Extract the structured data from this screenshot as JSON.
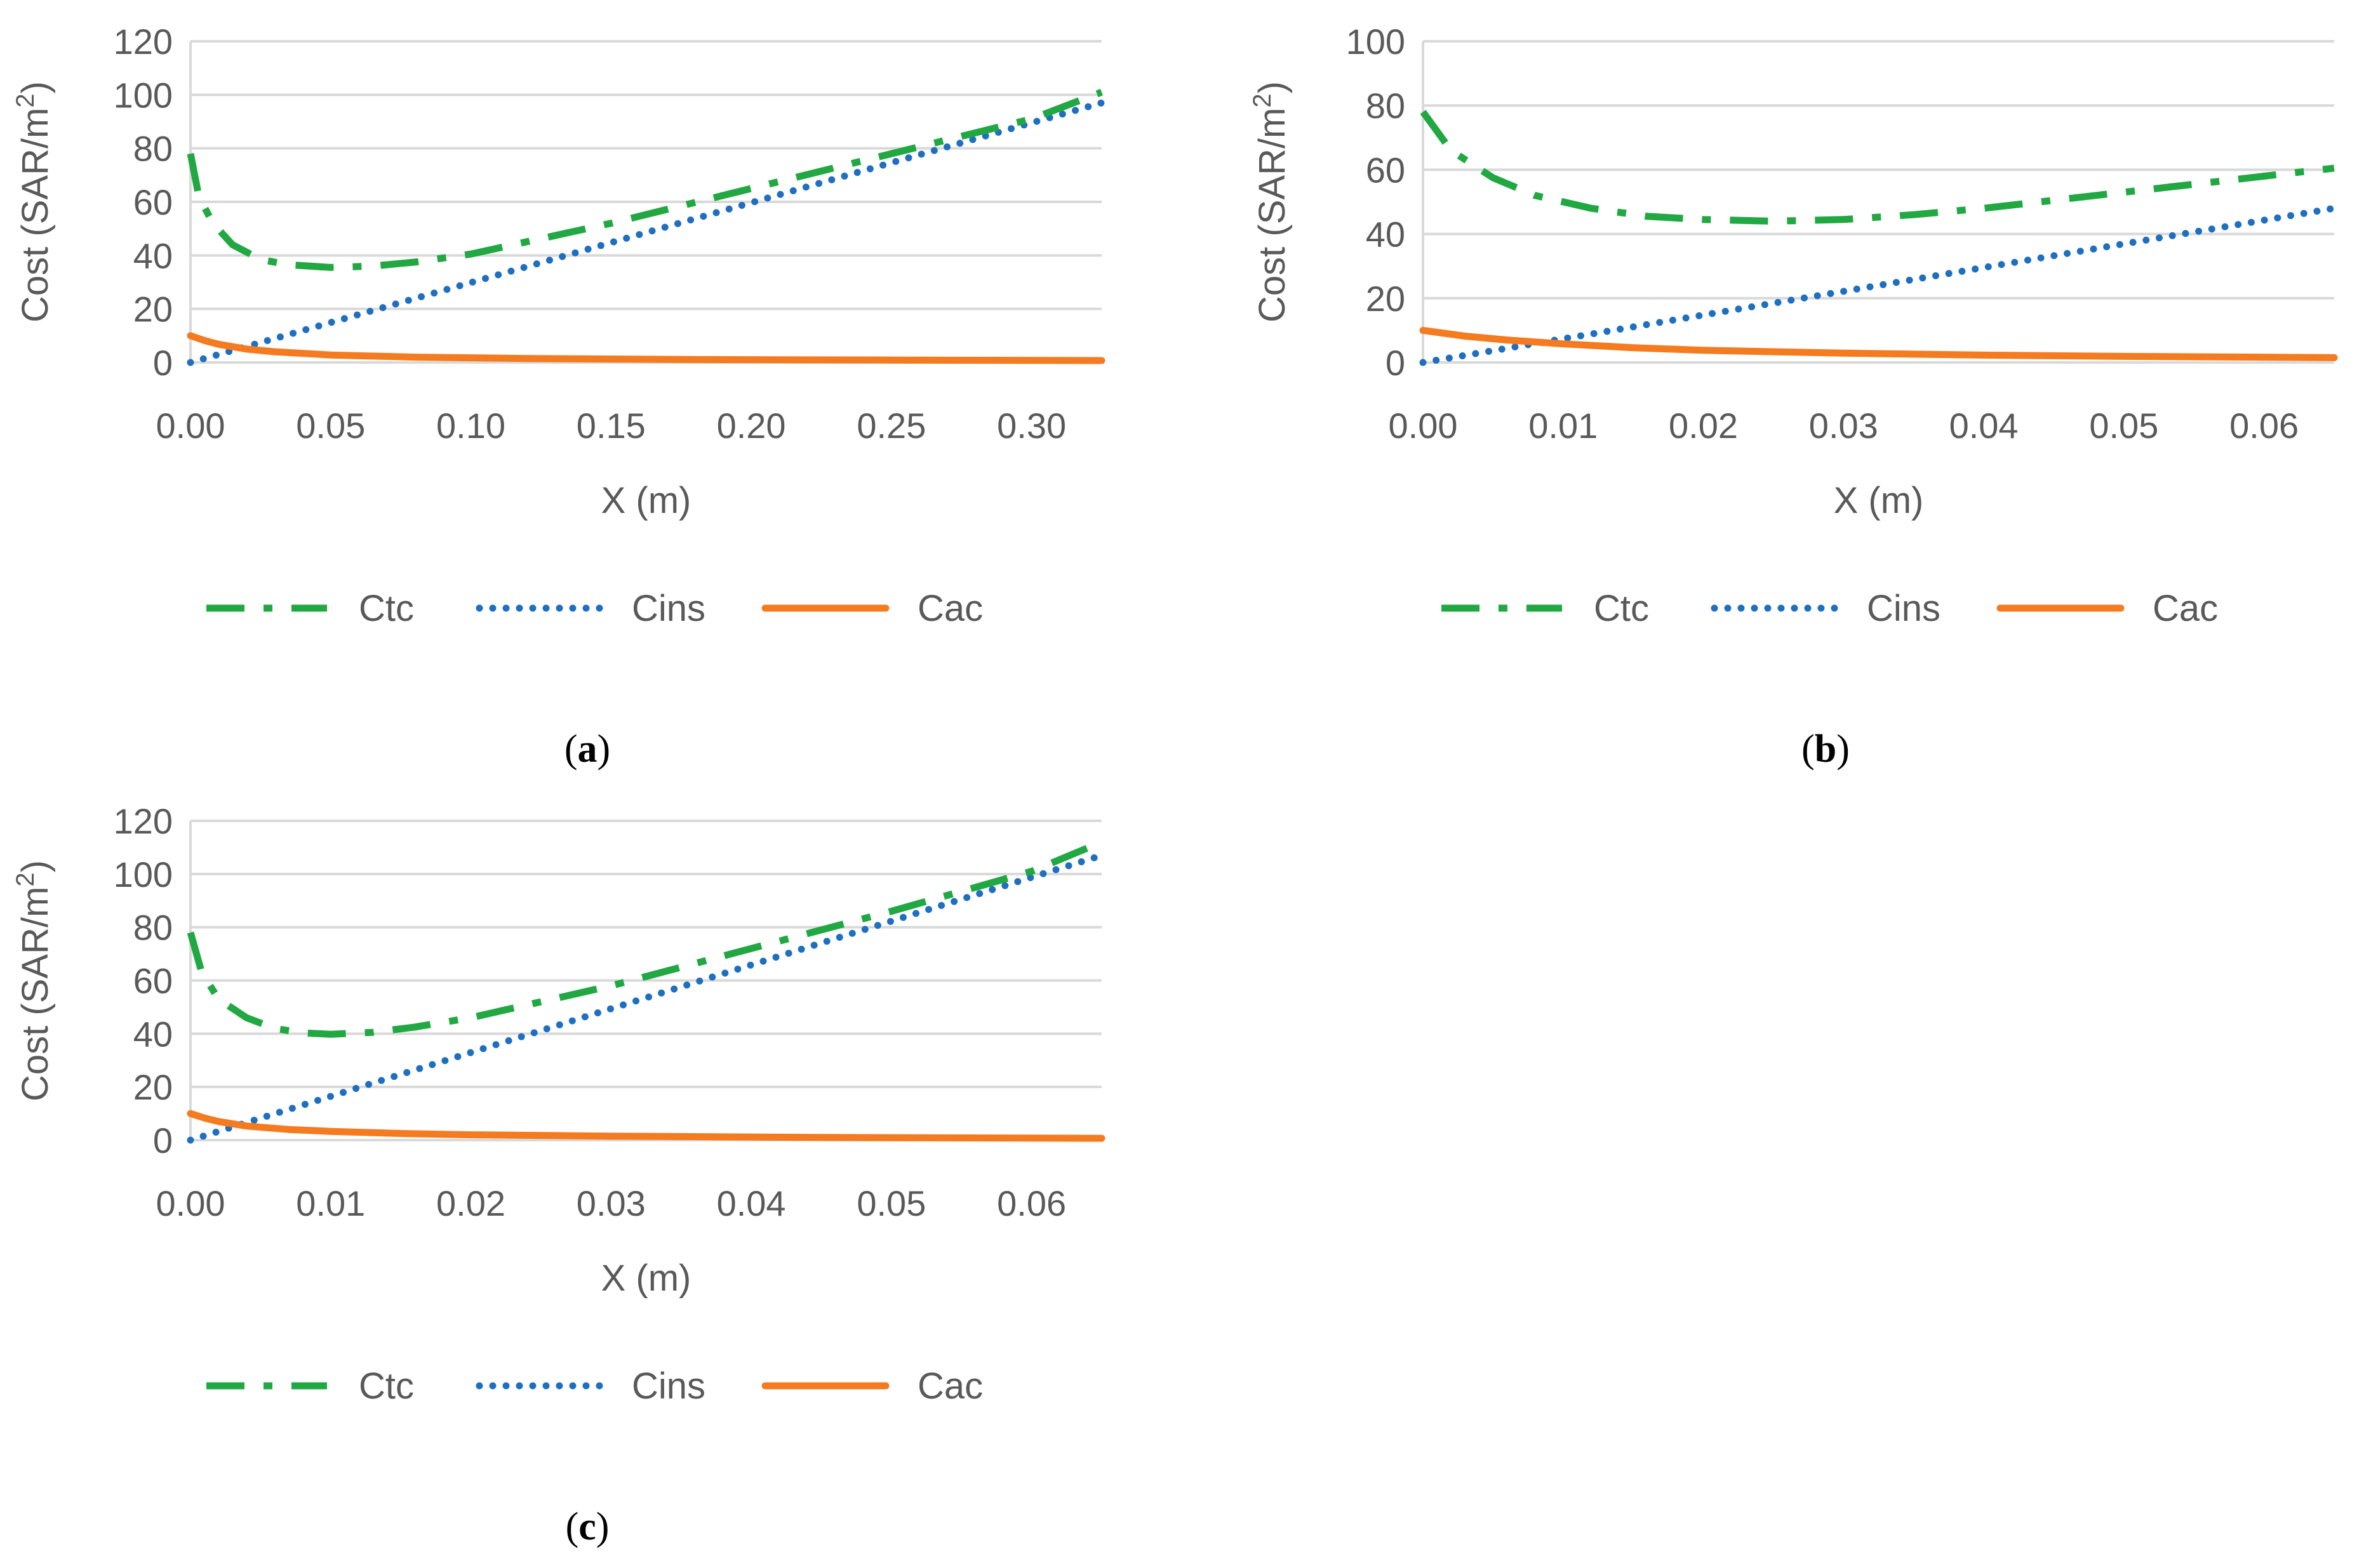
{
  "chart_data": [
    {
      "id": "a",
      "type": "line",
      "caption_letter": "a",
      "xlabel": "X (m)",
      "ylabel": "Cost (SAR/m",
      "ylabel_sup": "2",
      "ylabel_close": ")",
      "xlim": [
        0,
        0.325
      ],
      "ylim": [
        0,
        120
      ],
      "xticks": [
        0,
        0.05,
        0.1,
        0.15,
        0.2,
        0.25,
        0.3
      ],
      "xtick_labels": [
        "0.00",
        "0.05",
        "0.10",
        "0.15",
        "0.20",
        "0.25",
        "0.30"
      ],
      "yticks": [
        0,
        20,
        40,
        60,
        80,
        100,
        120
      ],
      "ytick_labels": [
        "0",
        "20",
        "40",
        "60",
        "80",
        "100",
        "120"
      ],
      "grid": true,
      "legend_position": "bottom",
      "series": [
        {
          "name": "Ctc",
          "style": "dash-dot",
          "color": "#22a843",
          "x": [
            0,
            0.003,
            0.008,
            0.015,
            0.025,
            0.035,
            0.05,
            0.065,
            0.08,
            0.1,
            0.15,
            0.2,
            0.25,
            0.3,
            0.325
          ],
          "y": [
            78,
            62,
            52,
            44,
            38.5,
            36.5,
            35.5,
            36,
            37.5,
            40.5,
            52,
            65,
            78,
            91,
            101
          ]
        },
        {
          "name": "Cins",
          "style": "dotted",
          "color": "#1f6fc1",
          "x": [
            0,
            0.325
          ],
          "y": [
            0,
            97
          ]
        },
        {
          "name": "Cac",
          "style": "solid",
          "color": "#f47b20",
          "x": [
            0,
            0.005,
            0.01,
            0.02,
            0.03,
            0.05,
            0.08,
            0.12,
            0.18,
            0.25,
            0.325
          ],
          "y": [
            10,
            8.2,
            6.8,
            5,
            4,
            2.8,
            2,
            1.5,
            1.1,
            0.9,
            0.7
          ]
        }
      ]
    },
    {
      "id": "b",
      "type": "line",
      "caption_letter": "b",
      "xlabel": "X (m)",
      "ylabel": "Cost (SAR/m",
      "ylabel_sup": "2",
      "ylabel_close": ")",
      "xlim": [
        0,
        0.065
      ],
      "ylim": [
        0,
        100
      ],
      "xticks": [
        0,
        0.01,
        0.02,
        0.03,
        0.04,
        0.05,
        0.06
      ],
      "xtick_labels": [
        "0.00",
        "0.01",
        "0.02",
        "0.03",
        "0.04",
        "0.05",
        "0.06"
      ],
      "yticks": [
        0,
        20,
        40,
        60,
        80,
        100
      ],
      "ytick_labels": [
        "0",
        "20",
        "40",
        "60",
        "80",
        "100"
      ],
      "grid": true,
      "legend_position": "bottom",
      "series": [
        {
          "name": "Ctc",
          "style": "dash-dot",
          "color": "#22a843",
          "x": [
            0,
            0.002,
            0.005,
            0.008,
            0.012,
            0.016,
            0.02,
            0.025,
            0.03,
            0.035,
            0.04,
            0.045,
            0.05,
            0.055,
            0.06,
            0.065
          ],
          "y": [
            78,
            66,
            57.5,
            52,
            48,
            45.5,
            44.5,
            44,
            44.5,
            46,
            48,
            50.5,
            53,
            55.5,
            58,
            60.5
          ]
        },
        {
          "name": "Cins",
          "style": "dotted",
          "color": "#1f6fc1",
          "x": [
            0,
            0.065
          ],
          "y": [
            0,
            48
          ]
        },
        {
          "name": "Cac",
          "style": "solid",
          "color": "#f47b20",
          "x": [
            0,
            0.003,
            0.006,
            0.01,
            0.015,
            0.02,
            0.03,
            0.04,
            0.05,
            0.065
          ],
          "y": [
            10,
            8.2,
            7,
            5.8,
            4.6,
            3.8,
            2.9,
            2.3,
            1.9,
            1.5
          ]
        }
      ]
    },
    {
      "id": "c",
      "type": "line",
      "caption_letter": "c",
      "xlabel": "X (m)",
      "ylabel": "Cost (SAR/m",
      "ylabel_sup": "2",
      "ylabel_close": ")",
      "xlim": [
        0,
        0.065
      ],
      "ylim": [
        0,
        120
      ],
      "xticks": [
        0,
        0.01,
        0.02,
        0.03,
        0.04,
        0.05,
        0.06
      ],
      "xtick_labels": [
        "0.00",
        "0.01",
        "0.02",
        "0.03",
        "0.04",
        "0.05",
        "0.06"
      ],
      "yticks": [
        0,
        20,
        40,
        60,
        80,
        100,
        120
      ],
      "ytick_labels": [
        "0",
        "20",
        "40",
        "60",
        "80",
        "100",
        "120"
      ],
      "grid": true,
      "legend_position": "bottom",
      "series": [
        {
          "name": "Ctc",
          "style": "dash-dot",
          "color": "#22a843",
          "x": [
            0,
            0.0008,
            0.002,
            0.004,
            0.006,
            0.008,
            0.01,
            0.013,
            0.016,
            0.02,
            0.03,
            0.04,
            0.05,
            0.06,
            0.065
          ],
          "y": [
            78,
            63,
            53,
            46,
            42,
            40.3,
            39.8,
            40.5,
            42.5,
            46,
            58,
            72,
            86,
            101,
            112
          ]
        },
        {
          "name": "Cins",
          "style": "dotted",
          "color": "#1f6fc1",
          "x": [
            0,
            0.065
          ],
          "y": [
            0,
            107
          ]
        },
        {
          "name": "Cac",
          "style": "solid",
          "color": "#f47b20",
          "x": [
            0,
            0.001,
            0.002,
            0.004,
            0.007,
            0.01,
            0.015,
            0.02,
            0.03,
            0.045,
            0.065
          ],
          "y": [
            10,
            8.3,
            7,
            5.3,
            4,
            3.3,
            2.5,
            2,
            1.5,
            1,
            0.7
          ]
        }
      ]
    }
  ]
}
